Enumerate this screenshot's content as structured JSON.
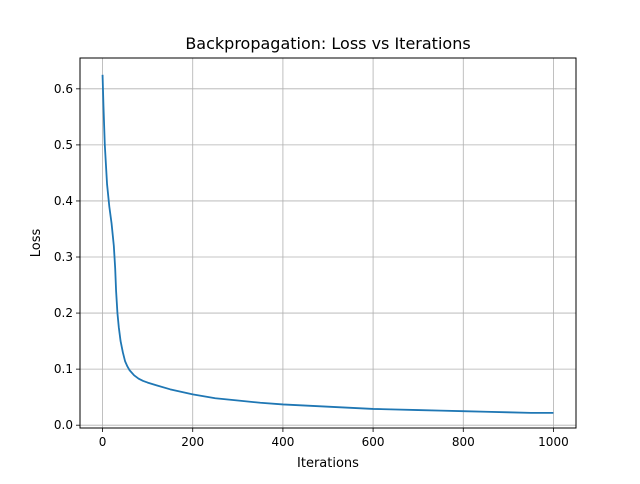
{
  "chart_data": {
    "type": "line",
    "title": "Backpropagation: Loss vs Iterations",
    "xlabel": "Iterations",
    "ylabel": "Loss",
    "xlim": [
      -50,
      1050
    ],
    "ylim": [
      -0.005,
      0.655
    ],
    "x_ticks": [
      0,
      200,
      400,
      600,
      800,
      1000
    ],
    "y_ticks": [
      0.0,
      0.1,
      0.2,
      0.3,
      0.4,
      0.5,
      0.6
    ],
    "grid": true,
    "series": [
      {
        "color": "#1f77b4",
        "x": [
          0,
          2,
          5,
          10,
          15,
          20,
          25,
          28,
          30,
          33,
          36,
          40,
          45,
          50,
          55,
          60,
          70,
          80,
          90,
          100,
          120,
          150,
          200,
          250,
          300,
          350,
          400,
          450,
          500,
          550,
          600,
          650,
          700,
          750,
          800,
          850,
          900,
          950,
          1000
        ],
        "y": [
          0.625,
          0.57,
          0.5,
          0.43,
          0.39,
          0.36,
          0.32,
          0.28,
          0.24,
          0.2,
          0.175,
          0.15,
          0.13,
          0.114,
          0.105,
          0.098,
          0.089,
          0.083,
          0.079,
          0.076,
          0.071,
          0.064,
          0.055,
          0.048,
          0.044,
          0.04,
          0.037,
          0.035,
          0.033,
          0.031,
          0.029,
          0.028,
          0.027,
          0.026,
          0.025,
          0.024,
          0.023,
          0.022,
          0.022
        ]
      }
    ]
  }
}
